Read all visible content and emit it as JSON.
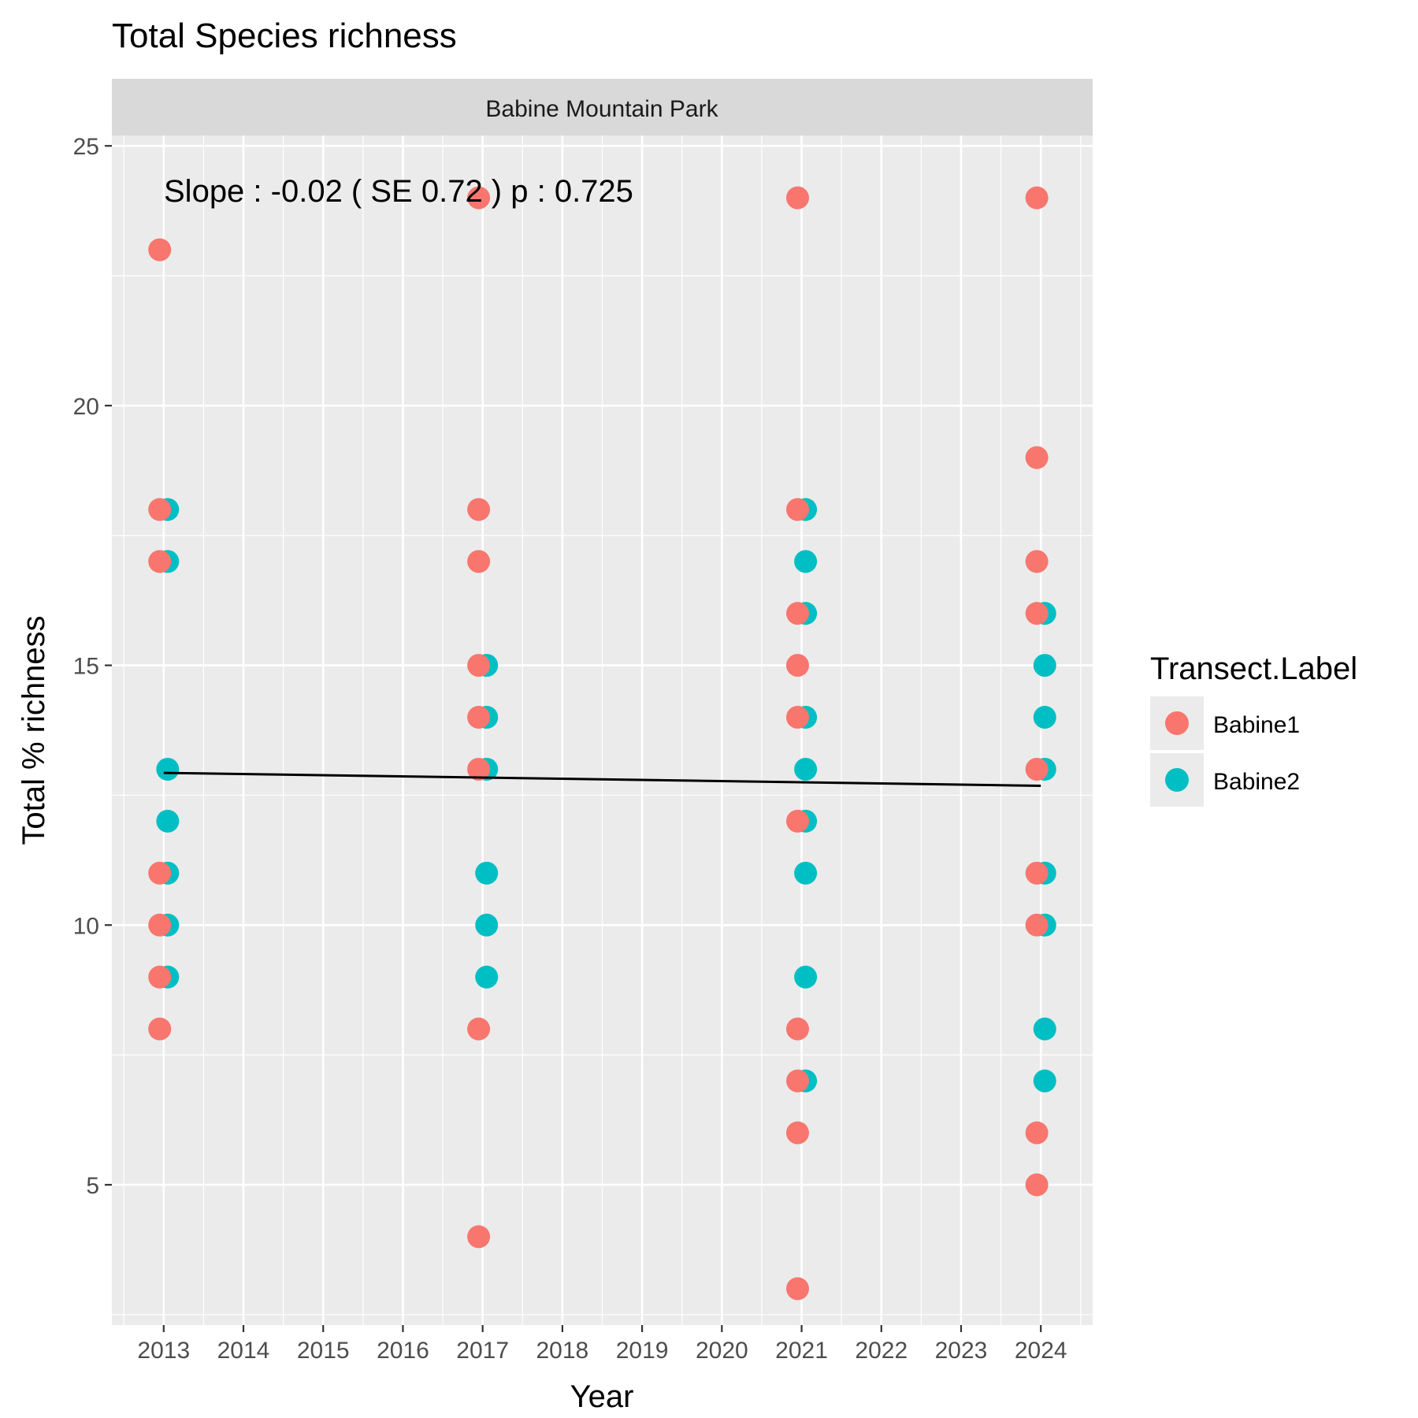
{
  "chart_data": {
    "type": "scatter",
    "title": "Total Species richness",
    "facet_label": "Babine Mountain Park",
    "xlabel": "Year",
    "ylabel": "Total % richness",
    "xlim": [
      2012.35,
      2024.65
    ],
    "ylim": [
      2.3,
      25.2
    ],
    "x_ticks": [
      2013,
      2014,
      2015,
      2016,
      2017,
      2018,
      2019,
      2020,
      2021,
      2022,
      2023,
      2024
    ],
    "y_ticks": [
      5,
      10,
      15,
      20,
      25
    ],
    "grid": true,
    "legend": {
      "title": "Transect.Label",
      "placement": "right"
    },
    "annotation": "Slope :  -0.02  ( SE  0.72 )  p : 0.725",
    "colors": {
      "Babine1": "#F8766D",
      "Babine2": "#00BFC4",
      "panel_bg": "#EBEBEB",
      "strip_bg": "#D9D9D9",
      "trend": "#000000"
    },
    "series": [
      {
        "name": "Babine2",
        "points": [
          [
            2013,
            18
          ],
          [
            2013,
            17
          ],
          [
            2013,
            13
          ],
          [
            2013,
            12
          ],
          [
            2013,
            11
          ],
          [
            2013,
            10
          ],
          [
            2013,
            9
          ],
          [
            2017,
            15
          ],
          [
            2017,
            14
          ],
          [
            2017,
            13
          ],
          [
            2017,
            11
          ],
          [
            2017,
            10
          ],
          [
            2017,
            9
          ],
          [
            2021,
            18
          ],
          [
            2021,
            17
          ],
          [
            2021,
            16
          ],
          [
            2021,
            14
          ],
          [
            2021,
            13
          ],
          [
            2021,
            12
          ],
          [
            2021,
            11
          ],
          [
            2021,
            9
          ],
          [
            2021,
            7
          ],
          [
            2024,
            16
          ],
          [
            2024,
            15
          ],
          [
            2024,
            14
          ],
          [
            2024,
            13
          ],
          [
            2024,
            11
          ],
          [
            2024,
            10
          ],
          [
            2024,
            8
          ],
          [
            2024,
            7
          ]
        ]
      },
      {
        "name": "Babine1",
        "points": [
          [
            2013,
            23
          ],
          [
            2013,
            18
          ],
          [
            2013,
            17
          ],
          [
            2013,
            11
          ],
          [
            2013,
            10
          ],
          [
            2013,
            9
          ],
          [
            2013,
            8
          ],
          [
            2017,
            24
          ],
          [
            2017,
            18
          ],
          [
            2017,
            17
          ],
          [
            2017,
            15
          ],
          [
            2017,
            14
          ],
          [
            2017,
            13
          ],
          [
            2017,
            8
          ],
          [
            2017,
            4
          ],
          [
            2021,
            24
          ],
          [
            2021,
            18
          ],
          [
            2021,
            16
          ],
          [
            2021,
            15
          ],
          [
            2021,
            14
          ],
          [
            2021,
            12
          ],
          [
            2021,
            8
          ],
          [
            2021,
            7
          ],
          [
            2021,
            6
          ],
          [
            2021,
            3
          ],
          [
            2024,
            24
          ],
          [
            2024,
            19
          ],
          [
            2024,
            17
          ],
          [
            2024,
            16
          ],
          [
            2024,
            13
          ],
          [
            2024,
            11
          ],
          [
            2024,
            10
          ],
          [
            2024,
            6
          ],
          [
            2024,
            5
          ]
        ]
      }
    ],
    "trend_line": {
      "x": [
        2013,
        2024
      ],
      "y": [
        12.93,
        12.68
      ]
    }
  }
}
